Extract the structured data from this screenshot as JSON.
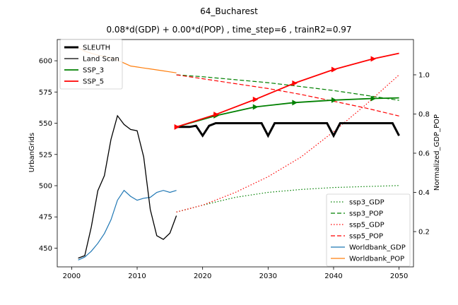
{
  "chart_data": {
    "type": "line",
    "title": "64_Bucharest",
    "subtitle": "0.08*d(GDP) + 0.00*d(POP) , time_step=6 , trainR2=0.97",
    "xlabel": "",
    "ylabel_left": "UrbanGrids",
    "ylabel_right": "Normalized_GDP_POP",
    "xlim": [
      1997.8,
      2052.2
    ],
    "ylim_left": [
      435,
      617
    ],
    "ylim_right": [
      0.02,
      1.18
    ],
    "xticks": [
      2000,
      2010,
      2020,
      2030,
      2040,
      2050
    ],
    "yticks_left": [
      450,
      475,
      500,
      525,
      550,
      575,
      600
    ],
    "yticks_right": [
      0.2,
      0.4,
      0.6,
      0.8,
      1.0
    ],
    "grid": false,
    "legend_left_placement": "upper-left",
    "legend_right_placement": "lower-right",
    "left_series": [
      {
        "name": "SLEUTH",
        "color": "#000000",
        "width": 3,
        "style": "solid",
        "marker": "none",
        "x": [
          2016,
          2017,
          2018,
          2019,
          2020,
          2021,
          2022,
          2023,
          2024,
          2025,
          2026,
          2027,
          2028,
          2029,
          2030,
          2031,
          2032,
          2033,
          2034,
          2035,
          2036,
          2037,
          2038,
          2039,
          2040,
          2041,
          2042,
          2043,
          2044,
          2045,
          2046,
          2047,
          2048,
          2049,
          2050
        ],
        "y": [
          547,
          547,
          547,
          548,
          540,
          548,
          550,
          550,
          550,
          550,
          550,
          550,
          550,
          550,
          540,
          550,
          550,
          550,
          550,
          550,
          550,
          550,
          550,
          550,
          540,
          550,
          550,
          550,
          550,
          550,
          550,
          550,
          550,
          550,
          540
        ]
      },
      {
        "name": "Land Scan",
        "color": "#000000",
        "width": 1.3,
        "style": "solid",
        "marker": "none",
        "x": [
          2001,
          2002,
          2003,
          2004,
          2005,
          2006,
          2007,
          2008,
          2009,
          2010,
          2011,
          2012,
          2013,
          2014,
          2015,
          2016
        ],
        "y": [
          442,
          444,
          467,
          496,
          508,
          537,
          556,
          549,
          545,
          544,
          523,
          481,
          460,
          457,
          462,
          476
        ]
      },
      {
        "name": "SSP_3",
        "color": "#008000",
        "width": 1.8,
        "style": "solid",
        "marker": "triangle",
        "x": [
          2016,
          2022,
          2028,
          2034,
          2040,
          2046,
          2050
        ],
        "y": [
          547,
          556,
          563,
          566.5,
          568.5,
          569.8,
          570.3
        ],
        "marker_x": [
          2022,
          2028,
          2034,
          2040,
          2046
        ]
      },
      {
        "name": "SSP_5",
        "color": "#ff0000",
        "width": 1.8,
        "style": "solid",
        "marker": "triangle",
        "x": [
          2016,
          2022,
          2028,
          2034,
          2040,
          2046,
          2050
        ],
        "y": [
          547,
          557,
          569,
          582,
          593,
          601.5,
          606
        ],
        "marker_x": [
          2016,
          2022,
          2028,
          2034,
          2040,
          2046
        ]
      }
    ],
    "right_series": [
      {
        "name": "ssp3_GDP",
        "color": "#008000",
        "width": 1.2,
        "style": "dotted",
        "x": [
          2016,
          2020,
          2025,
          2030,
          2035,
          2040,
          2045,
          2050
        ],
        "y": [
          0.3,
          0.335,
          0.375,
          0.4,
          0.415,
          0.425,
          0.43,
          0.435
        ]
      },
      {
        "name": "ssp3_POP",
        "color": "#008000",
        "width": 1.2,
        "style": "dashed",
        "x": [
          2016,
          2020,
          2025,
          2030,
          2035,
          2040,
          2045,
          2050
        ],
        "y": [
          1.0,
          0.99,
          0.975,
          0.96,
          0.94,
          0.92,
          0.895,
          0.87
        ]
      },
      {
        "name": "ssp5_GDP",
        "color": "#ff0000",
        "width": 1.2,
        "style": "dotted",
        "x": [
          2016,
          2020,
          2025,
          2030,
          2035,
          2040,
          2045,
          2050
        ],
        "y": [
          0.3,
          0.335,
          0.4,
          0.48,
          0.58,
          0.71,
          0.85,
          1.0
        ]
      },
      {
        "name": "ssp5_POP",
        "color": "#ff0000",
        "width": 1.2,
        "style": "dashed",
        "x": [
          2016,
          2020,
          2025,
          2030,
          2035,
          2040,
          2045,
          2050
        ],
        "y": [
          1.0,
          0.98,
          0.955,
          0.93,
          0.9,
          0.865,
          0.83,
          0.79
        ]
      },
      {
        "name": "Worldbank_GDP",
        "color": "#1f77b4",
        "width": 1.2,
        "style": "solid",
        "x": [
          2001,
          2002,
          2003,
          2004,
          2005,
          2006,
          2007,
          2008,
          2009,
          2010,
          2011,
          2012,
          2013,
          2014,
          2015,
          2016
        ],
        "y": [
          0.055,
          0.07,
          0.1,
          0.14,
          0.19,
          0.26,
          0.36,
          0.41,
          0.38,
          0.36,
          0.37,
          0.375,
          0.4,
          0.41,
          0.4,
          0.41
        ]
      },
      {
        "name": "Worldbank_POP",
        "color": "#ff7f0e",
        "width": 1.2,
        "style": "solid",
        "x": [
          2001,
          2002,
          2003,
          2004,
          2005,
          2006,
          2007,
          2008,
          2009,
          2010,
          2011,
          2012,
          2013,
          2014,
          2015,
          2016
        ],
        "y": [
          1.14,
          1.12,
          1.11,
          1.1,
          1.095,
          1.085,
          1.075,
          1.06,
          1.045,
          1.04,
          1.035,
          1.03,
          1.025,
          1.02,
          1.015,
          1.01
        ]
      }
    ]
  }
}
